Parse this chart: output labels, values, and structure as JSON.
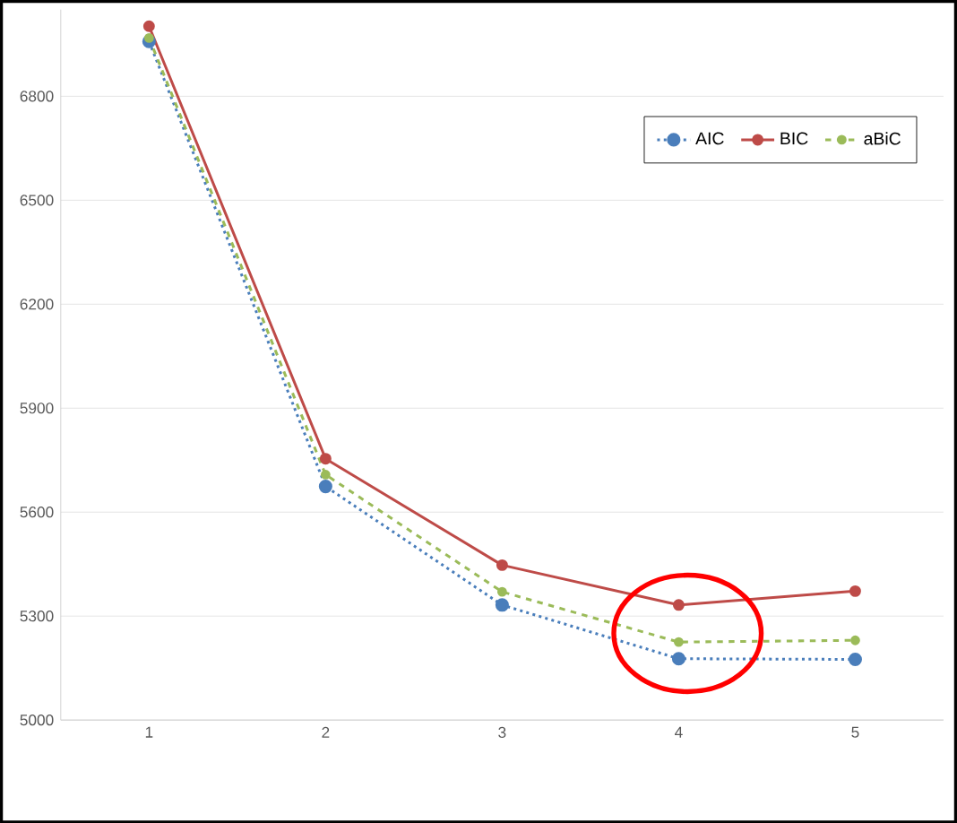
{
  "chart_data": {
    "type": "line",
    "categories": [
      "1",
      "2",
      "3",
      "4",
      "5"
    ],
    "series": [
      {
        "name": "AIC",
        "color": "#4a7ebb",
        "line_style": "dotted",
        "values": [
          6958,
          5674,
          5332,
          5177,
          5175
        ]
      },
      {
        "name": "BIC",
        "color": "#be4b48",
        "line_style": "solid",
        "values": [
          7002,
          5754,
          5447,
          5332,
          5372
        ]
      },
      {
        "name": "aBiC",
        "color": "#9bbb59",
        "line_style": "dashed",
        "values": [
          6968,
          5708,
          5370,
          5225,
          5230
        ]
      }
    ],
    "ylim": [
      5000,
      7050
    ],
    "yticks": [
      5000,
      5300,
      5600,
      5900,
      6200,
      6500,
      6800
    ],
    "grid": "y",
    "legend": "top right",
    "marker": "circle"
  }
}
